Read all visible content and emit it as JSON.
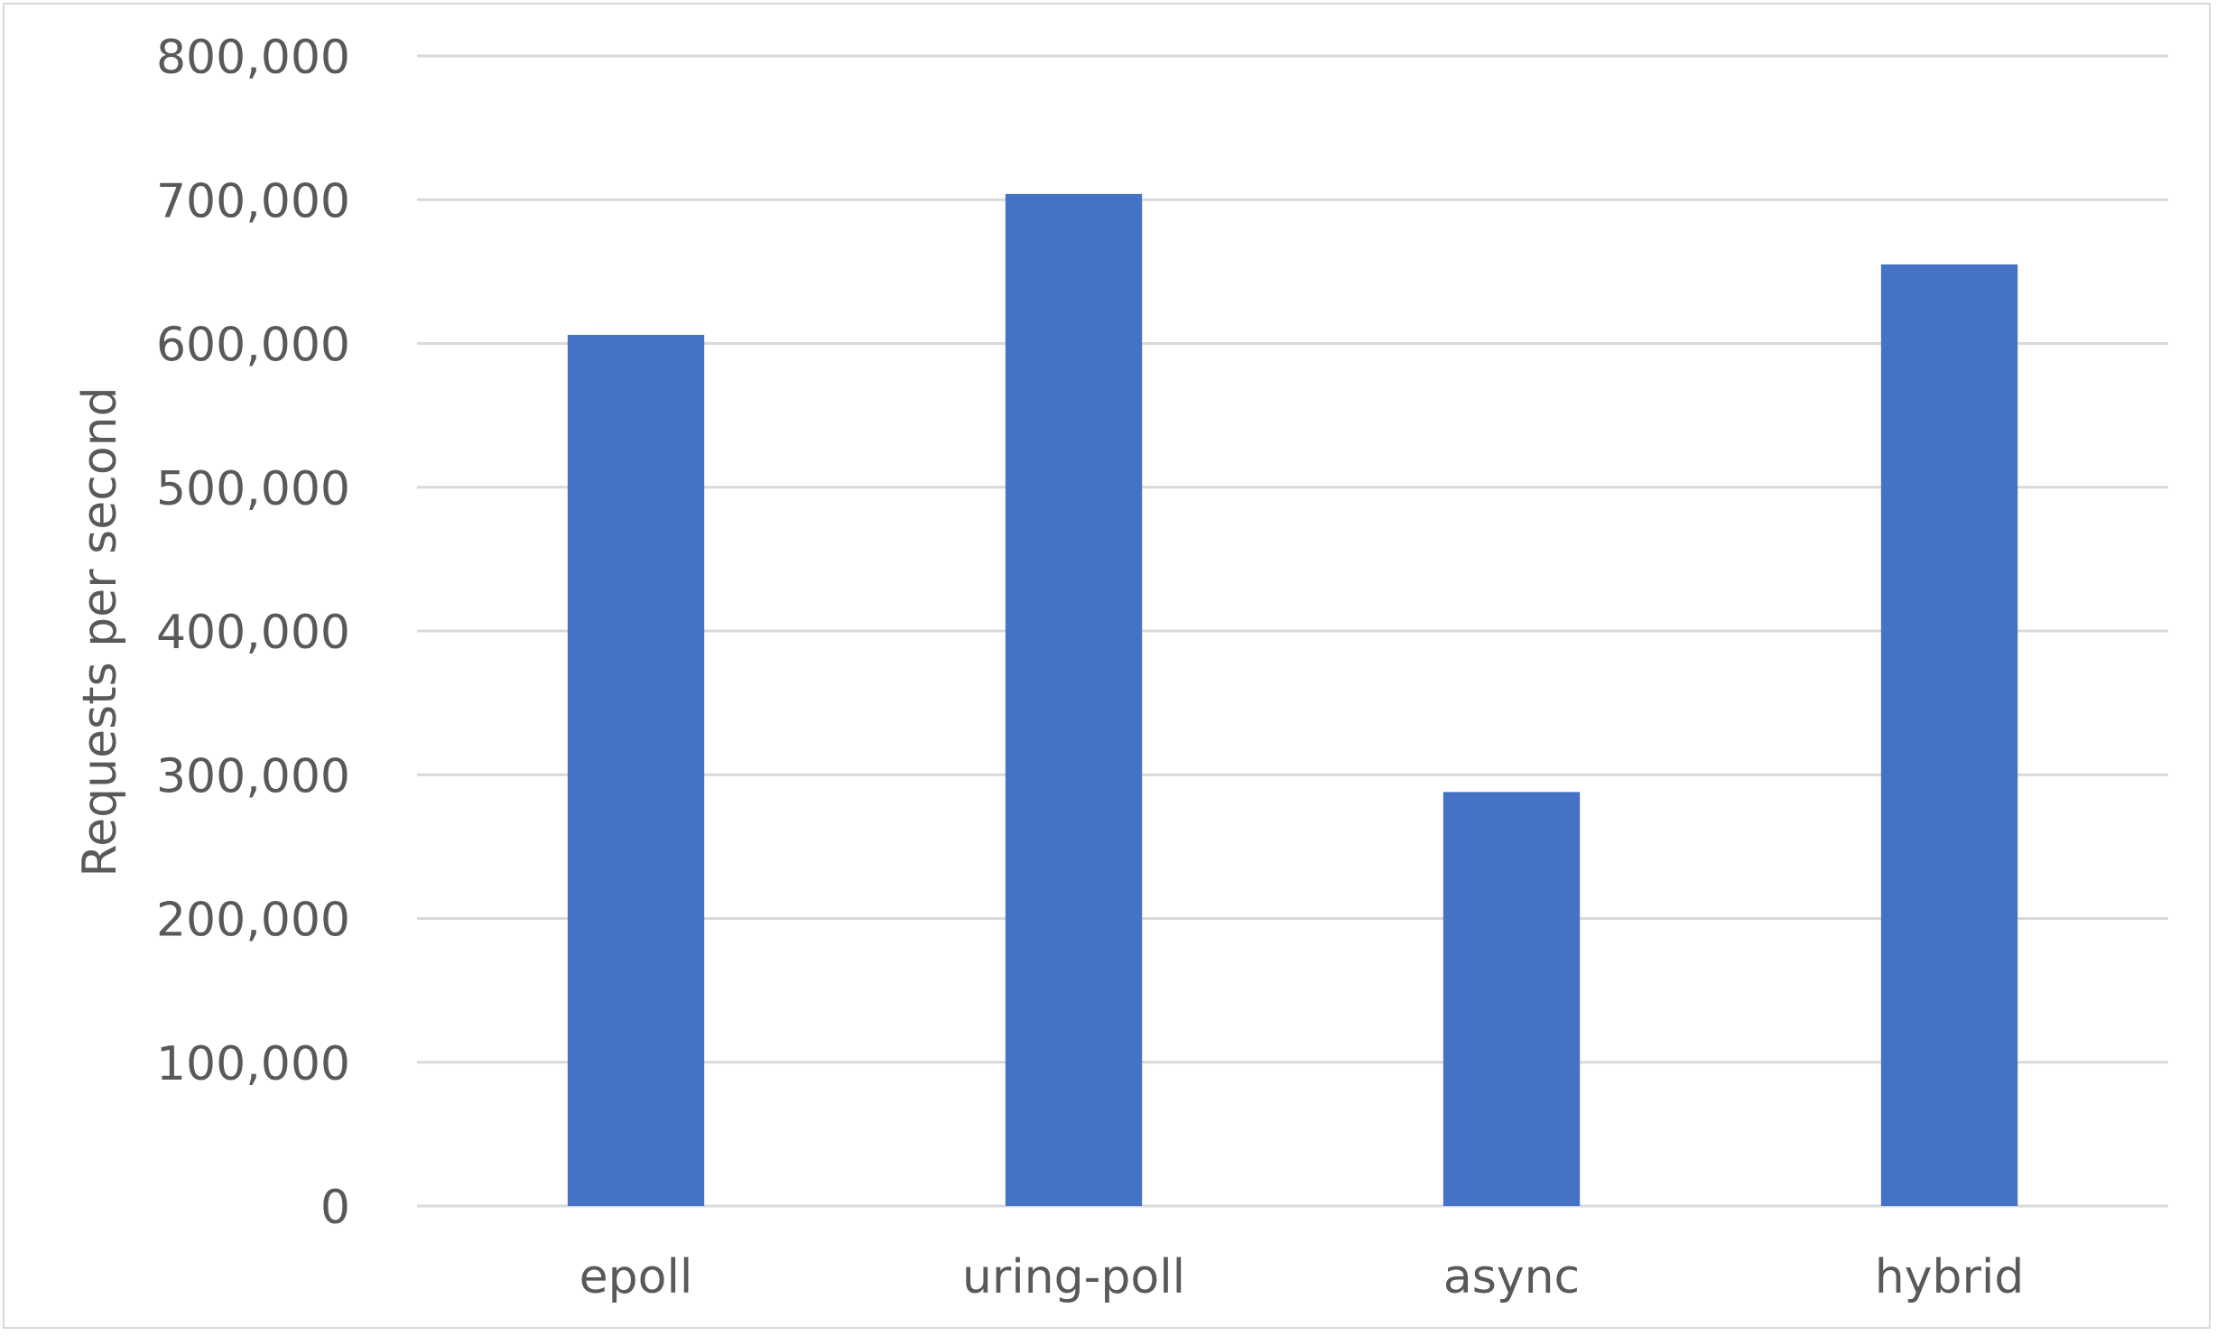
{
  "chart_data": {
    "type": "bar",
    "title": "",
    "xlabel": "",
    "ylabel": "Requests per second",
    "categories": [
      "epoll",
      "uring-poll",
      "async",
      "hybrid"
    ],
    "values": [
      606000,
      704000,
      288000,
      655000
    ],
    "ylim": [
      0,
      800000
    ],
    "yticks": [
      0,
      100000,
      200000,
      300000,
      400000,
      500000,
      600000,
      700000,
      800000
    ],
    "ytick_labels": [
      "0",
      "100,000",
      "200,000",
      "300,000",
      "400,000",
      "500,000",
      "600,000",
      "700,000",
      "800,000"
    ],
    "grid": true,
    "legend": "none",
    "bar_color": "#4472c4"
  }
}
